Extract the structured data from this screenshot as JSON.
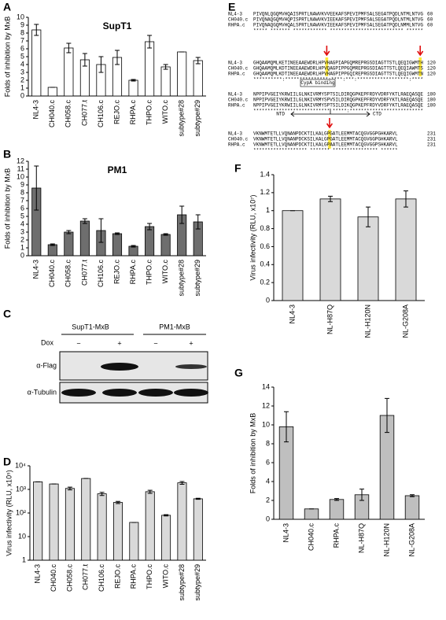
{
  "chart_data": [
    {
      "type": "bar",
      "label": "A",
      "title": "SupT1",
      "ylabel": "Folds of inhibition by MxB",
      "categories": [
        "NL4-3",
        "CH040.c",
        "CH058.c",
        "CH077.t",
        "CH106.c",
        "REJO.c",
        "RHPA.c",
        "THPO.c",
        "WITO.c",
        "subtype#28",
        "subtype#29"
      ],
      "values": [
        8.4,
        1.1,
        6.1,
        4.6,
        4.0,
        4.9,
        2.0,
        6.9,
        3.7,
        5.6,
        4.5
      ],
      "errors": [
        0.7,
        0,
        0.6,
        0.8,
        1.0,
        0.9,
        0.1,
        0.8,
        0.3,
        0,
        0.4
      ],
      "color": "#ffffff",
      "ylim": [
        0,
        10
      ],
      "yticks": [
        0,
        1,
        2,
        3,
        4,
        5,
        6,
        7,
        8,
        9,
        10
      ]
    },
    {
      "type": "bar",
      "label": "B",
      "title": "PM1",
      "ylabel": "Folds of inhibition by MxB",
      "categories": [
        "NL4-3",
        "CH040.c",
        "CH058.c",
        "CH077.t",
        "CH106.c",
        "REJO.c",
        "RHPA.c",
        "THPO.c",
        "WITO.c",
        "subtype#28",
        "subtype#29"
      ],
      "values": [
        8.6,
        1.4,
        3.0,
        4.4,
        3.2,
        2.8,
        1.2,
        3.7,
        2.7,
        5.2,
        4.3
      ],
      "errors": [
        2.8,
        0.1,
        0.2,
        0.3,
        1.5,
        0.1,
        0.1,
        0.4,
        0.1,
        1.1,
        0.9
      ],
      "color": "#6e6e6e",
      "ylim": [
        0,
        12
      ],
      "yticks": [
        0,
        1,
        2,
        3,
        4,
        5,
        6,
        7,
        8,
        9,
        10,
        11,
        12
      ]
    },
    {
      "type": "bar",
      "label": "D",
      "ylabel": "Virus infectivity (RLU, x10⁵)",
      "log_scale": true,
      "categories": [
        "NL4-3",
        "CH040.c",
        "CH058.c",
        "CH077.t",
        "CH106.c",
        "REJO.c",
        "RHPA.c",
        "THPO.c",
        "WITO.c",
        "subtype#28",
        "subtype#29"
      ],
      "values": [
        2100,
        1700,
        1100,
        2900,
        650,
        280,
        40,
        800,
        80,
        1900,
        400
      ],
      "errors": [
        0,
        0,
        150,
        0,
        100,
        30,
        0,
        120,
        5,
        250,
        20
      ],
      "color": "#d9d9d9",
      "ylim": [
        1,
        10000
      ],
      "yticks": [
        1,
        10,
        {
          "value": 100,
          "label": "10²"
        },
        {
          "value": 1000,
          "label": "10³"
        },
        {
          "value": 10000,
          "label": "10⁴"
        }
      ]
    },
    {
      "type": "bar",
      "label": "F",
      "ylabel": "Virus infectivity (RLU, x10⁷)",
      "categories": [
        "NL4-3",
        "NL-H87Q",
        "NL-H120N",
        "NL-G208A"
      ],
      "values": [
        1,
        1.13,
        0.93,
        1.13
      ],
      "errors": [
        0,
        0.03,
        0.11,
        0.09
      ],
      "color": "#d9d9d9",
      "ylim": [
        0,
        1.4
      ],
      "yticks": [
        0,
        0.2,
        0.4,
        0.6,
        0.8,
        1,
        1.2,
        1.4
      ]
    },
    {
      "type": "bar",
      "label": "G",
      "ylabel": "Folds of inhibition by MxB",
      "categories": [
        "NL4-3",
        "CH040.c",
        "RHPA.c",
        "NL-H87Q",
        "NL-H120N",
        "NL-G208A"
      ],
      "values": [
        9.8,
        1.1,
        2.1,
        2.6,
        11.0,
        2.5
      ],
      "errors": [
        1.6,
        0,
        0.1,
        0.6,
        1.8,
        0.1
      ],
      "color": "#bfbfbf",
      "ylim": [
        0,
        14
      ],
      "yticks": [
        0,
        2,
        4,
        6,
        8,
        10,
        12,
        14
      ]
    }
  ],
  "blot": {
    "label": "C",
    "groups": [
      "SupT1-MxB",
      "PM1-MxB"
    ],
    "treatment": "Dox",
    "lanes": [
      "−",
      "+",
      "−",
      "+"
    ],
    "rows": [
      "α-Flag",
      "α-Tubulin"
    ]
  },
  "alignment": {
    "label": "E",
    "cypa": "CypA binding",
    "ntd": "NTD",
    "ctd": "CTD",
    "blocks": [
      {
        "rows": [
          {
            "name": "NL4-3",
            "seq": "PIVQNLQGQMVHQAISPRTLNAWVKVVEEKAFSPEVIPMFSALSEGATPQDLNTMLNTVG",
            "end": 60
          },
          {
            "name": "CH040.c",
            "seq": "PIVQNAQGQMVHQPISPRTLNAWVKVIEEKAFSPEVIPMFSALSEGATPQDLNTMLNTVG",
            "end": 60
          },
          {
            "name": "RHPA.c",
            "seq": "PIVQNAQGQMVHQALSPRTLNAWVKVIEEKAFSPEVIPMFSALSEGATPQDLNMMLNTVG",
            "end": 60
          }
        ],
        "consensus": "***** ******* ************ ************************** ******"
      },
      {
        "rows": [
          {
            "name": "NL4-3",
            "seq": "GHQAAMQMLKETINEEAAEWDRLHPVHAGPIAPGQMREPRGSDIAGTTSTLQEQIGWMTH",
            "end": 120
          },
          {
            "name": "CH040.c",
            "seq": "GHQAAMQMLKDTINEEAAEWDRLHPVQAGPIPPGQMREPRGSDIAGTTSTLQEQIAWMTS",
            "end": 120
          },
          {
            "name": "RHPA.c",
            "seq": "GHQAAMQMLKDTINEEAAEWDRLHPVHAGPIPPGQIREPRGSDIAGTTSTLQEQIGWMTN",
            "end": 120
          }
        ],
        "consensus": "**********:***************:****:***:******************:**** "
      },
      {
        "rows": [
          {
            "name": "NL4-3",
            "seq": "NPPIPVGEIYKRWIILGLNKIVRMYSPTSILDIRQGPKEPFRDYVDRFYKTLRAEQASQE",
            "end": 180
          },
          {
            "name": "CH040.c",
            "seq": "NPPIPVGEIYKRWIILGLNKIVRMYSPVSILDIRQGPKEPFRDYVDRFYKTLRAEQASQE",
            "end": 180
          },
          {
            "name": "RHPA.c",
            "seq": "NPPIPVGEIYKRWIILGLNKIVRMYSPTSILDIKQGPKEPFRDYVDRFYKTLRAEQASQE",
            "end": 180
          }
        ],
        "consensus": "*************************** *****:**************************"
      },
      {
        "rows": [
          {
            "name": "NL4-3",
            "seq": "VKNWMTETLLVQNANPDCKTILKALGPGATLEEMMTACQGVGGPGHKARVL",
            "end": 231
          },
          {
            "name": "CH040.c",
            "seq": "VKNWMTETLLVQNANPDCKSILKALGPGATLEEMMTACQGVGGPGHKARVL",
            "end": 231
          },
          {
            "name": "RHPA.c",
            "seq": "VKNWMTETLLVQNANPDCKTILKALGPAATLEEMMTACQGVGGPSHKARVL",
            "end": 231
          }
        ],
        "consensus": "******************* ******* **************** ******"
      }
    ]
  }
}
